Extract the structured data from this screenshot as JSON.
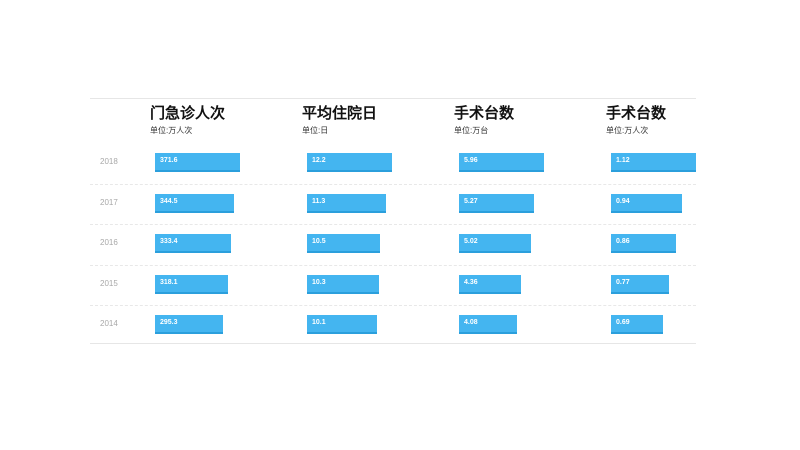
{
  "chart_data": {
    "type": "bar",
    "orientation": "horizontal",
    "categories": [
      "2018",
      "2017",
      "2016",
      "2015",
      "2014"
    ],
    "series": [
      {
        "name": "门急诊人次",
        "unit": "单位:万人次",
        "values": [
          371.6,
          344.5,
          333.4,
          318.1,
          295.3
        ],
        "labels": [
          "371.6",
          "344.5",
          "333.4",
          "318.1",
          "295.3"
        ]
      },
      {
        "name": "平均住院日",
        "unit": "单位:日",
        "values": [
          12.2,
          11.3,
          10.5,
          10.3,
          10.1
        ],
        "labels": [
          "12.2",
          "11.3",
          "10.5",
          "10.3",
          "10.1"
        ]
      },
      {
        "name": "手术台数",
        "unit": "单位:万台",
        "values": [
          5.96,
          5.27,
          5.02,
          4.36,
          4.08
        ],
        "labels": [
          "5.96",
          "5.27",
          "5.02",
          "4.36",
          "4.08"
        ]
      },
      {
        "name": "手术台数",
        "unit": "单位:万人次",
        "values": [
          1.12,
          0.94,
          0.86,
          0.77,
          0.69
        ],
        "labels": [
          "1.12",
          "0.94",
          "0.86",
          "0.77",
          "0.69"
        ]
      }
    ],
    "colors": {
      "bar": "#44b5f0",
      "bar_shadow": "#2b9fdc",
      "label": "#ffffff",
      "year": "#a8a8a8"
    },
    "grid": true,
    "legend": "none"
  }
}
